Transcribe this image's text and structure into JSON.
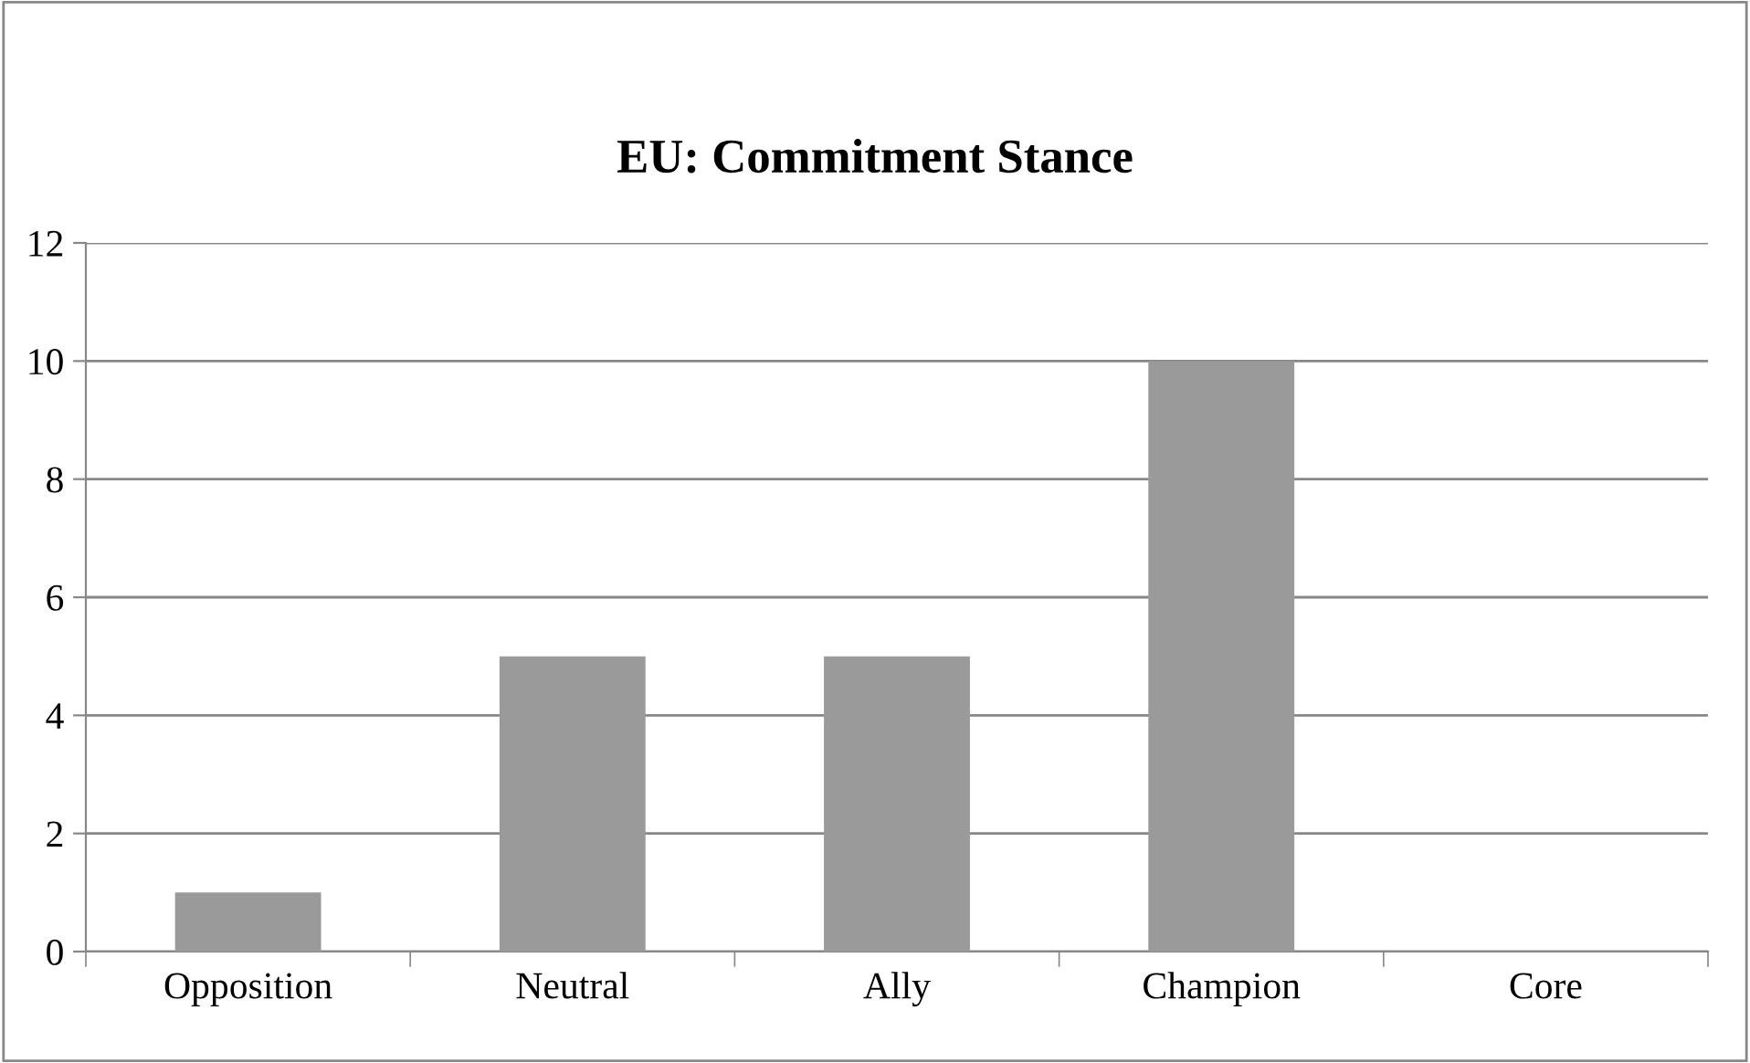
{
  "chart_data": {
    "type": "bar",
    "title": "EU: Commitment Stance",
    "categories": [
      "Opposition",
      "Neutral",
      "Ally",
      "Champion",
      "Core"
    ],
    "values": [
      1,
      5,
      5,
      10,
      0
    ],
    "color": "#9a9a9a",
    "ylim": [
      0,
      12
    ],
    "yticks": [
      0,
      2,
      4,
      6,
      8,
      10,
      12
    ],
    "grid": "y"
  }
}
